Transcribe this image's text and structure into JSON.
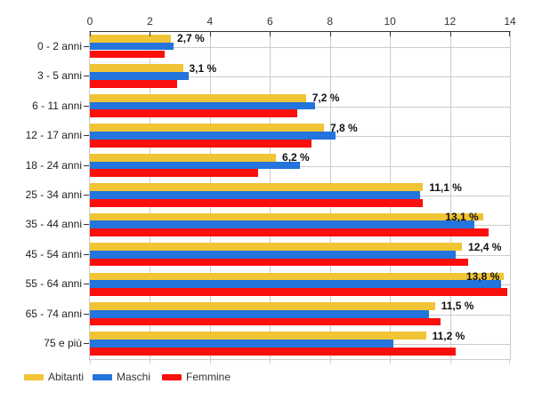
{
  "chart_data": {
    "type": "bar",
    "orientation": "horizontal",
    "title": "",
    "xlabel": "",
    "ylabel": "",
    "xlim": [
      0,
      14
    ],
    "x_ticks": [
      0,
      2,
      4,
      6,
      8,
      10,
      12,
      14
    ],
    "grid": true,
    "legend_position": "bottom-left",
    "categories": [
      "0 - 2 anni",
      "3 - 5 anni",
      "6 - 11 anni",
      "12 - 17 anni",
      "18 - 24 anni",
      "25 - 34 anni",
      "35 - 44 anni",
      "45 - 54 anni",
      "55 - 64 anni",
      "65 - 74 anni",
      "75 e più"
    ],
    "series": [
      {
        "name": "Abitanti",
        "color": "#F0C435",
        "values": [
          2.7,
          3.1,
          7.2,
          7.8,
          6.2,
          11.1,
          13.1,
          12.4,
          13.8,
          11.5,
          11.2
        ]
      },
      {
        "name": "Maschi",
        "color": "#2374DC",
        "values": [
          2.8,
          3.3,
          7.5,
          8.2,
          7.0,
          11.0,
          12.8,
          12.2,
          13.7,
          11.3,
          10.1
        ]
      },
      {
        "name": "Femmine",
        "color": "#FB0F0C",
        "values": [
          2.5,
          2.9,
          6.9,
          7.4,
          5.6,
          11.1,
          13.3,
          12.6,
          13.9,
          11.7,
          12.2
        ]
      }
    ],
    "value_labels": [
      "2,7 %",
      "3,1 %",
      "7,2 %",
      "7,8 %",
      "6,2 %",
      "11,1 %",
      "13,1 %",
      "12,4 %",
      "13,8 %",
      "11,5 %",
      "11,2 %"
    ],
    "value_labels_on_series": "Abitanti",
    "value_labels_inside_groups": [
      6,
      8
    ],
    "colors": {
      "axis_line": "#333333",
      "gridline": "#cccccc",
      "tick_text": "#333333",
      "category_text": "#222222",
      "value_text": "#111111",
      "legend_text": "#333333",
      "background": "#ffffff"
    }
  }
}
